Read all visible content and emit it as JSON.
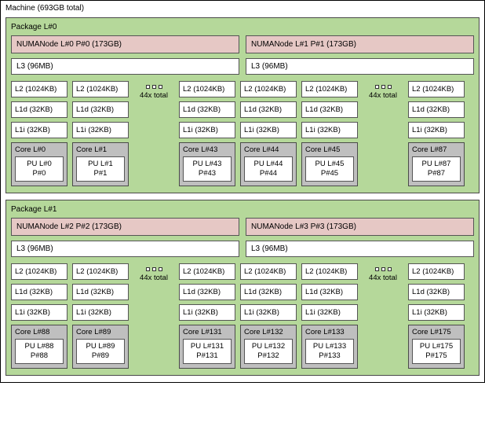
{
  "machine": {
    "label": "Machine (693GB total)"
  },
  "packages": [
    {
      "label": "Package L#0",
      "numa": [
        "NUMANode L#0 P#0 (173GB)",
        "NUMANode L#1 P#1 (173GB)"
      ],
      "l3": [
        "L3 (96MB)",
        "L3 (96MB)"
      ],
      "groups": [
        {
          "cols": [
            {
              "l2": "L2 (1024KB)",
              "l1d": "L1d (32KB)",
              "l1i": "L1i (32KB)",
              "core": "Core L#0",
              "pu": "PU L#0",
              "p": "P#0"
            },
            {
              "l2": "L2 (1024KB)",
              "l1d": "L1d (32KB)",
              "l1i": "L1i (32KB)",
              "core": "Core L#1",
              "pu": "PU L#1",
              "p": "P#1"
            }
          ],
          "ellipsis": "44x total",
          "tail": {
            "l2": "L2 (1024KB)",
            "l1d": "L1d (32KB)",
            "l1i": "L1i (32KB)",
            "core": "Core L#43",
            "pu": "PU L#43",
            "p": "P#43"
          }
        },
        {
          "cols": [
            {
              "l2": "L2 (1024KB)",
              "l1d": "L1d (32KB)",
              "l1i": "L1i (32KB)",
              "core": "Core L#44",
              "pu": "PU L#44",
              "p": "P#44"
            },
            {
              "l2": "L2 (1024KB)",
              "l1d": "L1d (32KB)",
              "l1i": "L1i (32KB)",
              "core": "Core L#45",
              "pu": "PU L#45",
              "p": "P#45"
            }
          ],
          "ellipsis": "44x total",
          "tail": {
            "l2": "L2 (1024KB)",
            "l1d": "L1d (32KB)",
            "l1i": "L1i (32KB)",
            "core": "Core L#87",
            "pu": "PU L#87",
            "p": "P#87"
          }
        }
      ]
    },
    {
      "label": "Package L#1",
      "numa": [
        "NUMANode L#2 P#2 (173GB)",
        "NUMANode L#3 P#3 (173GB)"
      ],
      "l3": [
        "L3 (96MB)",
        "L3 (96MB)"
      ],
      "groups": [
        {
          "cols": [
            {
              "l2": "L2 (1024KB)",
              "l1d": "L1d (32KB)",
              "l1i": "L1i (32KB)",
              "core": "Core L#88",
              "pu": "PU L#88",
              "p": "P#88"
            },
            {
              "l2": "L2 (1024KB)",
              "l1d": "L1d (32KB)",
              "l1i": "L1i (32KB)",
              "core": "Core L#89",
              "pu": "PU L#89",
              "p": "P#89"
            }
          ],
          "ellipsis": "44x total",
          "tail": {
            "l2": "L2 (1024KB)",
            "l1d": "L1d (32KB)",
            "l1i": "L1i (32KB)",
            "core": "Core L#131",
            "pu": "PU L#131",
            "p": "P#131"
          }
        },
        {
          "cols": [
            {
              "l2": "L2 (1024KB)",
              "l1d": "L1d (32KB)",
              "l1i": "L1i (32KB)",
              "core": "Core L#132",
              "pu": "PU L#132",
              "p": "P#132"
            },
            {
              "l2": "L2 (1024KB)",
              "l1d": "L1d (32KB)",
              "l1i": "L1i (32KB)",
              "core": "Core L#133",
              "pu": "PU L#133",
              "p": "P#133"
            }
          ],
          "ellipsis": "44x total",
          "tail": {
            "l2": "L2 (1024KB)",
            "l1d": "L1d (32KB)",
            "l1i": "L1i (32KB)",
            "core": "Core L#175",
            "pu": "PU L#175",
            "p": "P#175"
          }
        }
      ]
    }
  ],
  "colors": {
    "package_bg": "#b5d89a",
    "numa_bg": "#e6c8c5",
    "core_bg": "#bfbfbf",
    "box_bg": "#ffffff",
    "border": "#4a4a4a"
  }
}
